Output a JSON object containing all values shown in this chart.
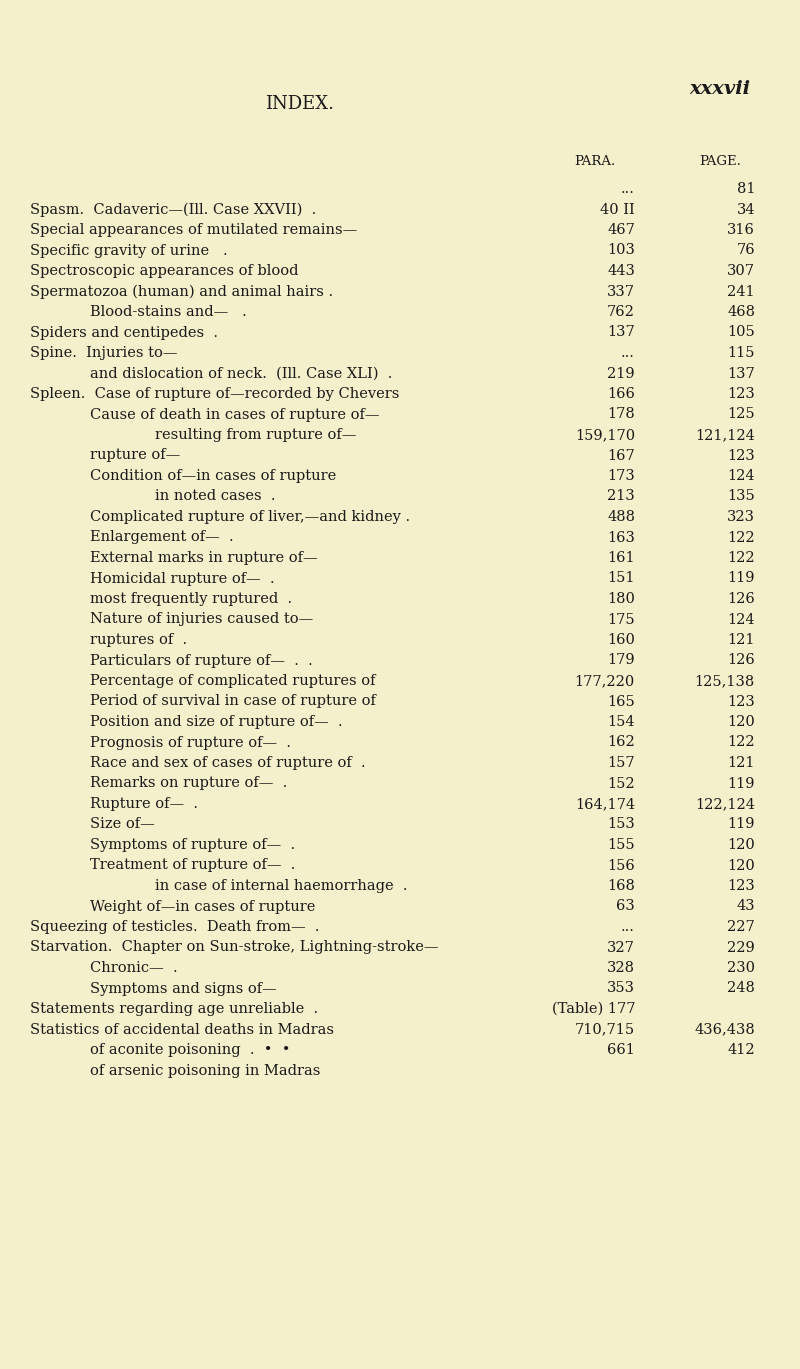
{
  "background_color": "#f5f0cc",
  "header_left": "INDEX.",
  "header_right": "xxxvii",
  "col_para": "PARA.",
  "col_page": "PAGE.",
  "entries": [
    {
      "text": "",
      "indent": 0,
      "para": "...",
      "page": "81"
    },
    {
      "text": "Spasm.  Cadaveric—(Ill. Case XXVII)  .",
      "indent": 0,
      "para": "40 II",
      "page": "34"
    },
    {
      "text": "Special appearances of mutilated remains—",
      "indent": 0,
      "para": "467",
      "page": "316"
    },
    {
      "text": "Specific gravity of urine   .",
      "indent": 0,
      "para": "103",
      "page": "76"
    },
    {
      "text": "Spectroscopic appearances of blood",
      "indent": 0,
      "para": "443",
      "page": "307"
    },
    {
      "text": "Spermatozoa (human) and animal hairs .",
      "indent": 0,
      "para": "337",
      "page": "241"
    },
    {
      "text": "Blood-stains and—   .",
      "indent": 1,
      "para": "762",
      "page": "468"
    },
    {
      "text": "Spiders and centipedes  .",
      "indent": 0,
      "para": "137",
      "page": "105"
    },
    {
      "text": "Spine.  Injuries to—",
      "indent": 0,
      "para": "...",
      "page": "115"
    },
    {
      "text": "and dislocation of neck.  (Ill. Case XLI)  .",
      "indent": 1,
      "para": "219",
      "page": "137"
    },
    {
      "text": "Spleen.  Case of rupture of—recorded by Chevers",
      "indent": 0,
      "para": "166",
      "page": "123"
    },
    {
      "text": "Cause of death in cases of rupture of—",
      "indent": 1,
      "para": "178",
      "page": "125"
    },
    {
      "text": "resulting from rupture of—",
      "indent": 2,
      "para": "159,170",
      "page": "121,124"
    },
    {
      "text": "rupture of—",
      "indent": 1,
      "para": "167",
      "page": "123"
    },
    {
      "text": "Condition of—in cases of rupture",
      "indent": 1,
      "para": "173",
      "page": "124"
    },
    {
      "text": "in noted cases  .",
      "indent": 2,
      "para": "213",
      "page": "135"
    },
    {
      "text": "Complicated rupture of liver,—and kidney .",
      "indent": 1,
      "para": "488",
      "page": "323"
    },
    {
      "text": "Enlargement of—  .",
      "indent": 1,
      "para": "163",
      "page": "122"
    },
    {
      "text": "External marks in rupture of—",
      "indent": 1,
      "para": "161",
      "page": "122"
    },
    {
      "text": "Homicidal rupture of—  .",
      "indent": 1,
      "para": "151",
      "page": "119"
    },
    {
      "text": "most frequently ruptured  .",
      "indent": 1,
      "para": "180",
      "page": "126"
    },
    {
      "text": "Nature of injuries caused to—",
      "indent": 1,
      "para": "175",
      "page": "124"
    },
    {
      "text": "ruptures of  .",
      "indent": 1,
      "para": "160",
      "page": "121"
    },
    {
      "text": "Particulars of rupture of—  .  .",
      "indent": 1,
      "para": "179",
      "page": "126"
    },
    {
      "text": "Percentage of complicated ruptures of",
      "indent": 1,
      "para": "177,220",
      "page": "125,138"
    },
    {
      "text": "Period of survival in case of rupture of",
      "indent": 1,
      "para": "165",
      "page": "123"
    },
    {
      "text": "Position and size of rupture of—  .",
      "indent": 1,
      "para": "154",
      "page": "120"
    },
    {
      "text": "Prognosis of rupture of—  .",
      "indent": 1,
      "para": "162",
      "page": "122"
    },
    {
      "text": "Race and sex of cases of rupture of  .",
      "indent": 1,
      "para": "157",
      "page": "121"
    },
    {
      "text": "Remarks on rupture of—  .",
      "indent": 1,
      "para": "152",
      "page": "119"
    },
    {
      "text": "Rupture of—  .",
      "indent": 1,
      "para": "164,174",
      "page": "122,124"
    },
    {
      "text": "Size of—",
      "indent": 1,
      "para": "153",
      "page": "119"
    },
    {
      "text": "Symptoms of rupture of—  .",
      "indent": 1,
      "para": "155",
      "page": "120"
    },
    {
      "text": "Treatment of rupture of—  .",
      "indent": 1,
      "para": "156",
      "page": "120"
    },
    {
      "text": "in case of internal haemorrhage  .",
      "indent": 2,
      "para": "168",
      "page": "123"
    },
    {
      "text": "Weight of—in cases of rupture",
      "indent": 1,
      "para": "63",
      "page": "43"
    },
    {
      "text": "Squeezing of testicles.  Death from—  .",
      "indent": 0,
      "para": "...",
      "page": "227"
    },
    {
      "text": "Starvation.  Chapter on Sun-stroke, Lightning-stroke—",
      "indent": 0,
      "para": "327",
      "page": "229"
    },
    {
      "text": "Chronic—  .",
      "indent": 1,
      "para": "328",
      "page": "230"
    },
    {
      "text": "Symptoms and signs of—",
      "indent": 1,
      "para": "353",
      "page": "248"
    },
    {
      "text": "Statements regarding age unreliable  .",
      "indent": 0,
      "para": "(Table) 177",
      "page": ""
    },
    {
      "text": "Statistics of accidental deaths in Madras",
      "indent": 0,
      "para": "710,715",
      "page": "436,438"
    },
    {
      "text": "of aconite poisoning  .  •  •",
      "indent": 1,
      "para": "661",
      "page": "412"
    },
    {
      "text": "of arsenic poisoning in Madras",
      "indent": 1,
      "para": "",
      "page": ""
    }
  ]
}
